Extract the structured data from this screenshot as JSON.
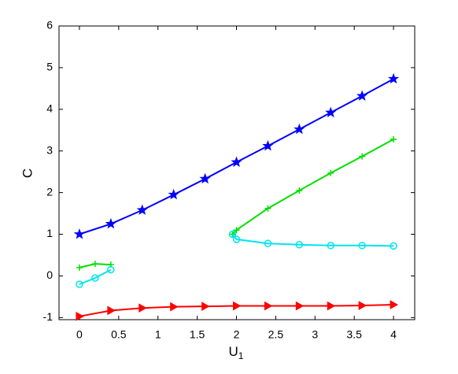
{
  "chart_data": {
    "type": "line",
    "xlabel": {
      "base": "U",
      "sub": "1"
    },
    "ylabel": "C",
    "xlim": [
      -0.26,
      4.27
    ],
    "ylim": [
      -1.05,
      6
    ],
    "xticks": [
      0,
      0.5,
      1,
      1.5,
      2,
      2.5,
      3,
      3.5,
      4
    ],
    "yticks": [
      -1,
      0,
      1,
      2,
      3,
      4,
      5,
      6
    ],
    "series": [
      {
        "color": "#0000ff",
        "marker": "star",
        "x": [
          0,
          0.4,
          0.8,
          1.2,
          1.6,
          2,
          2.4,
          2.8,
          3.2,
          3.6,
          4
        ],
        "values": [
          1,
          1.25,
          1.58,
          1.95,
          2.33,
          2.73,
          3.12,
          3.52,
          3.92,
          4.32,
          4.73
        ]
      },
      {
        "color": "#ff0000",
        "marker": "triangle-right",
        "x": [
          0,
          0.4,
          0.8,
          1.2,
          1.6,
          2,
          2.4,
          2.8,
          3.2,
          3.6,
          4
        ],
        "values": [
          -0.97,
          -0.83,
          -0.77,
          -0.74,
          -0.73,
          -0.72,
          -0.72,
          -0.72,
          -0.72,
          -0.71,
          -0.69
        ]
      },
      {
        "color": "#00e000",
        "marker": "plus",
        "x": [
          0,
          0.2,
          0.4,
          null,
          1.95,
          2,
          2.4,
          2.8,
          3.2,
          3.6,
          4
        ],
        "values": [
          0.2,
          0.29,
          0.27,
          null,
          1.0,
          1.1,
          1.62,
          2.05,
          2.47,
          2.87,
          3.28
        ]
      },
      {
        "color": "#00e5ee",
        "marker": "circle",
        "x": [
          0,
          0.2,
          0.4,
          null,
          1.95,
          2,
          2.4,
          2.8,
          3.2,
          3.6,
          4
        ],
        "values": [
          -0.2,
          -0.05,
          0.15,
          null,
          1.0,
          0.88,
          0.78,
          0.75,
          0.73,
          0.73,
          0.72
        ]
      }
    ]
  }
}
